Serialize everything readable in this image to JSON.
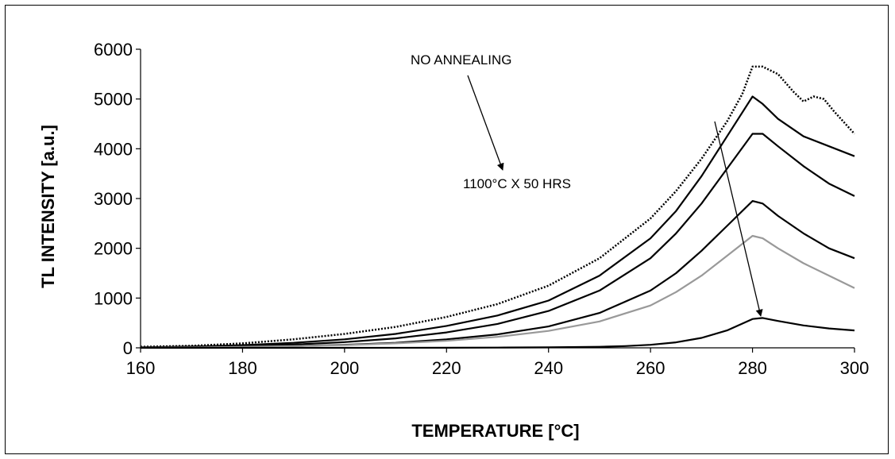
{
  "chart_data": {
    "type": "line",
    "title": "",
    "xlabel": "TEMPERATURE [°C]",
    "ylabel": "TL INTENSITY [a.u.]",
    "xlim": [
      160,
      300
    ],
    "ylim": [
      0,
      6000
    ],
    "xticks": [
      160,
      180,
      200,
      220,
      240,
      260,
      280,
      300
    ],
    "yticks": [
      0,
      1000,
      2000,
      3000,
      4000,
      5000,
      6000
    ],
    "grid": false,
    "legend": "none",
    "annotations": {
      "top": "NO ANNEALING",
      "bottom": "1100°C X 50 HRS"
    },
    "series": [
      {
        "style": "dotted",
        "color": "#000000",
        "x": [
          160,
          170,
          180,
          190,
          200,
          210,
          220,
          230,
          240,
          250,
          260,
          265,
          270,
          275,
          278,
          280,
          282,
          285,
          288,
          290,
          292,
          294,
          296,
          300
        ],
        "values": [
          20,
          40,
          90,
          170,
          280,
          420,
          620,
          880,
          1250,
          1800,
          2600,
          3150,
          3800,
          4550,
          5100,
          5650,
          5650,
          5500,
          5150,
          4950,
          5050,
          5000,
          4750,
          4300
        ]
      },
      {
        "style": "solid",
        "color": "#000000",
        "x": [
          160,
          170,
          180,
          190,
          200,
          210,
          220,
          230,
          240,
          250,
          260,
          265,
          270,
          275,
          280,
          282,
          285,
          290,
          295,
          300
        ],
        "values": [
          10,
          25,
          55,
          100,
          170,
          280,
          440,
          650,
          950,
          1450,
          2200,
          2750,
          3450,
          4250,
          5050,
          4900,
          4600,
          4250,
          4050,
          3850
        ]
      },
      {
        "style": "solid",
        "color": "#000000",
        "x": [
          160,
          170,
          180,
          190,
          200,
          210,
          220,
          230,
          240,
          250,
          260,
          265,
          270,
          275,
          280,
          282,
          285,
          290,
          295,
          300
        ],
        "values": [
          5,
          15,
          35,
          65,
          115,
          190,
          310,
          480,
          740,
          1150,
          1800,
          2300,
          2900,
          3600,
          4300,
          4300,
          4050,
          3650,
          3300,
          3050
        ]
      },
      {
        "style": "solid",
        "color": "#000000",
        "x": [
          160,
          170,
          180,
          190,
          200,
          210,
          220,
          230,
          240,
          250,
          260,
          265,
          270,
          275,
          280,
          282,
          285,
          290,
          295,
          300
        ],
        "values": [
          3,
          8,
          18,
          35,
          60,
          100,
          170,
          270,
          430,
          700,
          1150,
          1500,
          1950,
          2450,
          2950,
          2900,
          2650,
          2300,
          2000,
          1800
        ]
      },
      {
        "style": "solid",
        "color": "#999999",
        "x": [
          160,
          170,
          180,
          190,
          200,
          210,
          220,
          230,
          240,
          250,
          260,
          265,
          270,
          275,
          280,
          282,
          285,
          290,
          295,
          300
        ],
        "values": [
          3,
          8,
          20,
          35,
          55,
          90,
          140,
          220,
          340,
          530,
          850,
          1120,
          1450,
          1850,
          2250,
          2200,
          2000,
          1700,
          1450,
          1200
        ]
      },
      {
        "style": "solid",
        "color": "#000000",
        "x": [
          160,
          180,
          200,
          220,
          230,
          240,
          250,
          255,
          260,
          265,
          270,
          275,
          280,
          282,
          285,
          290,
          295,
          300
        ],
        "values": [
          0,
          0,
          0,
          2,
          5,
          10,
          20,
          35,
          60,
          110,
          200,
          350,
          580,
          600,
          540,
          450,
          390,
          350
        ]
      }
    ]
  }
}
